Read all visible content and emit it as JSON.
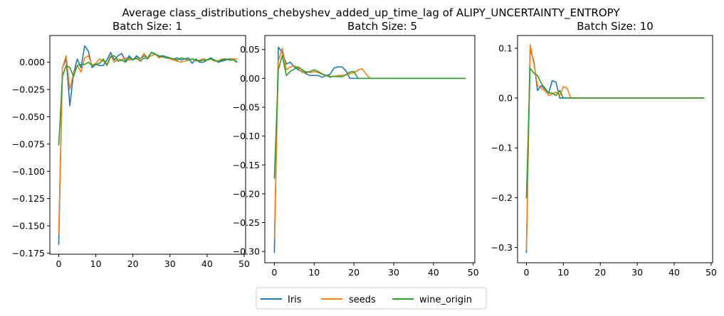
{
  "figure": {
    "title": "Average class_distributions_chebyshev_added_up_time_lag of ALIPY_UNCERTAINTY_ENTROPY"
  },
  "colors": {
    "Iris": "#1f77b4",
    "seeds": "#ff7f0e",
    "wine_origin": "#2ca02c"
  },
  "chart_data": [
    {
      "type": "line",
      "title": "Batch Size: 1",
      "xlabel": "",
      "ylabel": "",
      "xlim": [
        -2.4,
        50.4
      ],
      "ylim": [
        -0.176,
        0.0245
      ],
      "xticks": [
        0,
        10,
        20,
        30,
        40,
        50
      ],
      "yticks": [
        -0.175,
        -0.15,
        -0.125,
        -0.1,
        -0.075,
        -0.05,
        -0.025,
        0.0
      ],
      "ytick_labels": [
        "−0.175",
        "−0.150",
        "−0.125",
        "−0.100",
        "−0.075",
        "−0.050",
        "−0.025",
        "0.000"
      ],
      "series": [
        {
          "name": "Iris",
          "x": [
            0,
            1,
            2,
            3,
            4,
            5,
            6,
            7,
            8,
            9,
            10,
            11,
            12,
            13,
            14,
            15,
            16,
            17,
            18,
            19,
            20,
            21,
            22,
            23,
            24,
            25,
            26,
            27,
            28,
            29,
            30,
            31,
            32,
            33,
            34,
            35,
            36,
            37,
            38,
            39,
            40,
            41,
            42,
            43,
            44,
            45,
            46,
            47,
            48
          ],
          "values": [
            -0.167,
            -0.005,
            0.003,
            -0.04,
            -0.01,
            0.003,
            -0.005,
            0.015,
            0.01,
            -0.005,
            -0.002,
            -0.003,
            -0.003,
            0.002,
            0.009,
            0.002,
            0.006,
            0.008,
            0.001,
            0.006,
            0.002,
            0.006,
            0.003,
            0.006,
            0.004,
            0.009,
            0.008,
            0.005,
            0.006,
            0.005,
            0.004,
            0.003,
            0.004,
            0.002,
            0.003,
            0.004,
            -0.001,
            0.003,
            0.0,
            0.0,
            0.002,
            0.004,
            0.002,
            0.0,
            0.001,
            0.002,
            0.003,
            0.003,
            0.0
          ]
        },
        {
          "name": "seeds",
          "x": [
            0,
            1,
            2,
            3,
            4,
            5,
            6,
            7,
            8,
            9,
            10,
            11,
            12,
            13,
            14,
            15,
            16,
            17,
            18,
            19,
            20,
            21,
            22,
            23,
            24,
            25,
            26,
            27,
            28,
            29,
            30,
            31,
            32,
            33,
            34,
            35,
            36,
            37,
            38,
            39,
            40,
            41,
            42,
            43,
            44,
            45,
            46,
            47,
            48
          ],
          "values": [
            -0.157,
            -0.005,
            0.006,
            -0.025,
            -0.01,
            -0.003,
            -0.009,
            0.004,
            0.006,
            -0.003,
            -0.001,
            0.003,
            0.001,
            -0.002,
            0.006,
            0.0,
            0.003,
            0.002,
            0.004,
            0.002,
            0.003,
            0.003,
            0.003,
            0.008,
            0.004,
            0.006,
            0.008,
            0.004,
            0.005,
            0.004,
            0.003,
            0.002,
            0.001,
            0.0,
            0.001,
            0.002,
            0.003,
            0.001,
            0.002,
            0.003,
            0.002,
            0.003,
            0.001,
            0.001,
            0.003,
            0.003,
            0.002,
            0.003,
            0.003
          ]
        },
        {
          "name": "wine_origin",
          "x": [
            0,
            1,
            2,
            3,
            4,
            5,
            6,
            7,
            8,
            9,
            10,
            11,
            12,
            13,
            14,
            15,
            16,
            17,
            18,
            19,
            20,
            21,
            22,
            23,
            24,
            25,
            26,
            27,
            28,
            29,
            30,
            31,
            32,
            33,
            34,
            35,
            36,
            37,
            38,
            39,
            40,
            41,
            42,
            43,
            44,
            45,
            46,
            47,
            48
          ],
          "values": [
            -0.076,
            -0.013,
            -0.003,
            -0.005,
            -0.013,
            -0.003,
            -0.002,
            -0.002,
            0.0,
            -0.003,
            -0.002,
            -0.001,
            0.003,
            -0.003,
            0.005,
            0.006,
            0.001,
            0.002,
            0.0,
            0.004,
            0.002,
            0.004,
            0.001,
            0.004,
            0.003,
            0.009,
            0.007,
            0.006,
            0.005,
            0.004,
            0.004,
            0.003,
            0.002,
            0.004,
            0.003,
            0.002,
            0.003,
            0.002,
            0.001,
            0.002,
            0.002,
            0.003,
            0.002,
            0.001,
            0.002,
            0.003,
            0.002,
            0.002,
            0.001
          ]
        }
      ]
    },
    {
      "type": "line",
      "title": "Batch Size: 5",
      "xlabel": "",
      "ylabel": "",
      "xlim": [
        -2.4,
        50.4
      ],
      "ylim": [
        -0.3195,
        0.0743
      ],
      "xticks": [
        0,
        10,
        20,
        30,
        40,
        50
      ],
      "yticks": [
        -0.3,
        -0.25,
        -0.2,
        -0.15,
        -0.1,
        -0.05,
        0.0,
        0.05
      ],
      "ytick_labels": [
        "−0.30",
        "−0.25",
        "−0.20",
        "−0.15",
        "−0.10",
        "−0.05",
        "0.00",
        "0.05"
      ],
      "series": [
        {
          "name": "Iris",
          "x": [
            0,
            1,
            2,
            3,
            4,
            5,
            6,
            7,
            8,
            9,
            10,
            11,
            12,
            13,
            14,
            15,
            16,
            17,
            18,
            19,
            20,
            21,
            22,
            23,
            24,
            25,
            26,
            27,
            28,
            29,
            30,
            31,
            32,
            33,
            34,
            35,
            36,
            37,
            38,
            39,
            40,
            41,
            42,
            43,
            44,
            45,
            46,
            47,
            48
          ],
          "values": [
            -0.302,
            0.054,
            0.045,
            0.025,
            0.028,
            0.02,
            0.015,
            0.012,
            0.008,
            0.005,
            0.005,
            0.005,
            0.002,
            0.005,
            0.007,
            0.018,
            0.02,
            0.02,
            0.013,
            0.0,
            0.0,
            0.0,
            0.0,
            0.0,
            0.0,
            0.0,
            0.0,
            0.0,
            0.0,
            0.0,
            0.0,
            0.0,
            0.0,
            0.0,
            0.0,
            0.0,
            0.0,
            0.0,
            0.0,
            0.0,
            0.0,
            0.0,
            0.0,
            0.0,
            0.0,
            0.0,
            0.0,
            0.0,
            0.0
          ]
        },
        {
          "name": "seeds",
          "x": [
            0,
            1,
            2,
            3,
            4,
            5,
            6,
            7,
            8,
            9,
            10,
            11,
            12,
            13,
            14,
            15,
            16,
            17,
            18,
            19,
            20,
            21,
            22,
            23,
            24,
            25,
            26,
            27,
            28,
            29,
            30,
            31,
            32,
            33,
            34,
            35,
            36,
            37,
            38,
            39,
            40,
            41,
            42,
            43,
            44,
            45,
            46,
            47,
            48
          ],
          "values": [
            -0.278,
            0.03,
            0.052,
            0.015,
            0.02,
            0.022,
            0.018,
            0.01,
            0.012,
            0.01,
            0.012,
            0.01,
            0.007,
            0.005,
            0.004,
            0.003,
            0.005,
            0.005,
            0.006,
            0.008,
            0.01,
            0.014,
            0.017,
            0.008,
            0.0,
            0.0,
            0.0,
            0.0,
            0.0,
            0.0,
            0.0,
            0.0,
            0.0,
            0.0,
            0.0,
            0.0,
            0.0,
            0.0,
            0.0,
            0.0,
            0.0,
            0.0,
            0.0,
            0.0,
            0.0,
            0.0,
            0.0,
            0.0,
            0.0
          ]
        },
        {
          "name": "wine_origin",
          "x": [
            0,
            1,
            2,
            3,
            4,
            5,
            6,
            7,
            8,
            9,
            10,
            11,
            12,
            13,
            14,
            15,
            16,
            17,
            18,
            19,
            20,
            21,
            22,
            23,
            24,
            25,
            26,
            27,
            28,
            29,
            30,
            31,
            32,
            33,
            34,
            35,
            36,
            37,
            38,
            39,
            40,
            41,
            42,
            43,
            44,
            45,
            46,
            47,
            48
          ],
          "values": [
            -0.173,
            0.015,
            0.04,
            0.005,
            0.012,
            0.016,
            0.02,
            0.015,
            0.01,
            0.012,
            0.015,
            0.012,
            0.008,
            0.005,
            0.002,
            0.004,
            0.003,
            0.003,
            0.006,
            0.011,
            0.012,
            0.0,
            0.0,
            0.0,
            0.0,
            0.0,
            0.0,
            0.0,
            0.0,
            0.0,
            0.0,
            0.0,
            0.0,
            0.0,
            0.0,
            0.0,
            0.0,
            0.0,
            0.0,
            0.0,
            0.0,
            0.0,
            0.0,
            0.0,
            0.0,
            0.0,
            0.0,
            0.0,
            0.0
          ]
        }
      ]
    },
    {
      "type": "line",
      "title": "Batch Size: 10",
      "xlabel": "",
      "ylabel": "",
      "xlim": [
        -2.4,
        50.4
      ],
      "ylim": [
        -0.3305,
        0.1255
      ],
      "xticks": [
        0,
        10,
        20,
        30,
        40,
        50
      ],
      "yticks": [
        -0.3,
        -0.2,
        -0.1,
        0.0,
        0.1
      ],
      "ytick_labels": [
        "−0.3",
        "−0.2",
        "−0.1",
        "0.0",
        "0.1"
      ],
      "series": [
        {
          "name": "Iris",
          "x": [
            0,
            1,
            2,
            3,
            4,
            5,
            6,
            7,
            8,
            9,
            10,
            11,
            12,
            13,
            14,
            15,
            16,
            17,
            18,
            19,
            20,
            21,
            22,
            23,
            24,
            25,
            26,
            27,
            28,
            29,
            30,
            31,
            32,
            33,
            34,
            35,
            36,
            37,
            38,
            39,
            40,
            41,
            42,
            43,
            44,
            45,
            46,
            47,
            48
          ],
          "values": [
            -0.31,
            0.098,
            0.075,
            0.015,
            0.025,
            0.018,
            0.01,
            0.035,
            0.032,
            0.0,
            0.0,
            0.0,
            0.0,
            0.0,
            0.0,
            0.0,
            0.0,
            0.0,
            0.0,
            0.0,
            0.0,
            0.0,
            0.0,
            0.0,
            0.0,
            0.0,
            0.0,
            0.0,
            0.0,
            0.0,
            0.0,
            0.0,
            0.0,
            0.0,
            0.0,
            0.0,
            0.0,
            0.0,
            0.0,
            0.0,
            0.0,
            0.0,
            0.0,
            0.0,
            0.0,
            0.0,
            0.0,
            0.0,
            0.0
          ]
        },
        {
          "name": "seeds",
          "x": [
            0,
            1,
            2,
            3,
            4,
            5,
            6,
            7,
            8,
            9,
            10,
            11,
            12,
            13,
            14,
            15,
            16,
            17,
            18,
            19,
            20,
            21,
            22,
            23,
            24,
            25,
            26,
            27,
            28,
            29,
            30,
            31,
            32,
            33,
            34,
            35,
            36,
            37,
            38,
            39,
            40,
            41,
            42,
            43,
            44,
            45,
            46,
            47,
            48
          ],
          "values": [
            -0.303,
            0.107,
            0.07,
            0.025,
            0.02,
            0.015,
            0.005,
            0.008,
            0.012,
            0.005,
            0.023,
            0.02,
            0.0,
            0.0,
            0.0,
            0.0,
            0.0,
            0.0,
            0.0,
            0.0,
            0.0,
            0.0,
            0.0,
            0.0,
            0.0,
            0.0,
            0.0,
            0.0,
            0.0,
            0.0,
            0.0,
            0.0,
            0.0,
            0.0,
            0.0,
            0.0,
            0.0,
            0.0,
            0.0,
            0.0,
            0.0,
            0.0,
            0.0,
            0.0,
            0.0,
            0.0,
            0.0,
            0.0,
            0.0
          ]
        },
        {
          "name": "wine_origin",
          "x": [
            0,
            1,
            2,
            3,
            4,
            5,
            6,
            7,
            8,
            9,
            10,
            11,
            12,
            13,
            14,
            15,
            16,
            17,
            18,
            19,
            20,
            21,
            22,
            23,
            24,
            25,
            26,
            27,
            28,
            29,
            30,
            31,
            32,
            33,
            34,
            35,
            36,
            37,
            38,
            39,
            40,
            41,
            42,
            43,
            44,
            45,
            46,
            47,
            48
          ],
          "values": [
            -0.2,
            0.06,
            0.05,
            0.045,
            0.03,
            0.02,
            0.01,
            0.01,
            0.005,
            0.015,
            0.0,
            0.0,
            0.0,
            0.0,
            0.0,
            0.0,
            0.0,
            0.0,
            0.0,
            0.0,
            0.0,
            0.0,
            0.0,
            0.0,
            0.0,
            0.0,
            0.0,
            0.0,
            0.0,
            0.0,
            0.0,
            0.0,
            0.0,
            0.0,
            0.0,
            0.0,
            0.0,
            0.0,
            0.0,
            0.0,
            0.0,
            0.0,
            0.0,
            0.0,
            0.0,
            0.0,
            0.0,
            0.0,
            0.0
          ]
        }
      ]
    }
  ],
  "legend": {
    "placement": "bottom-center",
    "items": [
      "Iris",
      "seeds",
      "wine_origin"
    ]
  }
}
